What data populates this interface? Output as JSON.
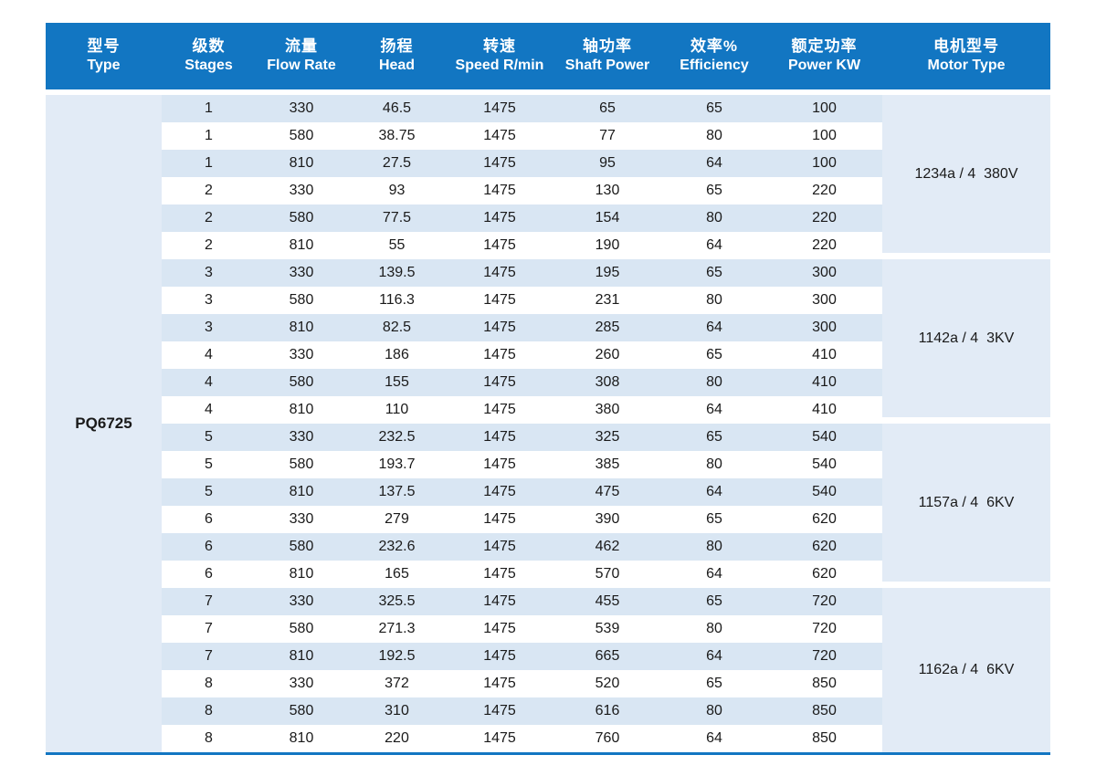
{
  "colors": {
    "header_blue": "#1276c2",
    "row_stripe_blue": "#d9e6f3",
    "group_block_blue": "#e2ebf6",
    "bottom_rule_blue": "#1276c2",
    "text": "#1a1a1a"
  },
  "table": {
    "model": "PQ6725",
    "columns": [
      {
        "zh": "型号",
        "en": "Type"
      },
      {
        "zh": "级数",
        "en": "Stages"
      },
      {
        "zh": "流量",
        "en": "Flow Rate"
      },
      {
        "zh": "扬程",
        "en": "Head"
      },
      {
        "zh": "转速",
        "en": "Speed R/min"
      },
      {
        "zh": "轴功率",
        "en": "Shaft Power"
      },
      {
        "zh": "效率%",
        "en": "Efficiency"
      },
      {
        "zh": "额定功率",
        "en": "Power KW"
      },
      {
        "zh": "电机型号",
        "en": "Motor Type"
      }
    ],
    "row_keys": [
      "stages",
      "flow",
      "head",
      "speed",
      "shaft",
      "eff",
      "power"
    ],
    "groups": [
      {
        "motor": "1234a / 4  380V",
        "rows": [
          {
            "stages": "1",
            "flow": "330",
            "head": "46.5",
            "speed": "1475",
            "shaft": "65",
            "eff": "65",
            "power": "100"
          },
          {
            "stages": "1",
            "flow": "580",
            "head": "38.75",
            "speed": "1475",
            "shaft": "77",
            "eff": "80",
            "power": "100"
          },
          {
            "stages": "1",
            "flow": "810",
            "head": "27.5",
            "speed": "1475",
            "shaft": "95",
            "eff": "64",
            "power": "100"
          },
          {
            "stages": "2",
            "flow": "330",
            "head": "93",
            "speed": "1475",
            "shaft": "130",
            "eff": "65",
            "power": "220"
          },
          {
            "stages": "2",
            "flow": "580",
            "head": "77.5",
            "speed": "1475",
            "shaft": "154",
            "eff": "80",
            "power": "220"
          },
          {
            "stages": "2",
            "flow": "810",
            "head": "55",
            "speed": "1475",
            "shaft": "190",
            "eff": "64",
            "power": "220"
          }
        ]
      },
      {
        "motor": "1142a / 4  3KV",
        "rows": [
          {
            "stages": "3",
            "flow": "330",
            "head": "139.5",
            "speed": "1475",
            "shaft": "195",
            "eff": "65",
            "power": "300"
          },
          {
            "stages": "3",
            "flow": "580",
            "head": "116.3",
            "speed": "1475",
            "shaft": "231",
            "eff": "80",
            "power": "300"
          },
          {
            "stages": "3",
            "flow": "810",
            "head": "82.5",
            "speed": "1475",
            "shaft": "285",
            "eff": "64",
            "power": "300"
          },
          {
            "stages": "4",
            "flow": "330",
            "head": "186",
            "speed": "1475",
            "shaft": "260",
            "eff": "65",
            "power": "410"
          },
          {
            "stages": "4",
            "flow": "580",
            "head": "155",
            "speed": "1475",
            "shaft": "308",
            "eff": "80",
            "power": "410"
          },
          {
            "stages": "4",
            "flow": "810",
            "head": "110",
            "speed": "1475",
            "shaft": "380",
            "eff": "64",
            "power": "410"
          }
        ]
      },
      {
        "motor": "1157a / 4  6KV",
        "rows": [
          {
            "stages": "5",
            "flow": "330",
            "head": "232.5",
            "speed": "1475",
            "shaft": "325",
            "eff": "65",
            "power": "540"
          },
          {
            "stages": "5",
            "flow": "580",
            "head": "193.7",
            "speed": "1475",
            "shaft": "385",
            "eff": "80",
            "power": "540"
          },
          {
            "stages": "5",
            "flow": "810",
            "head": "137.5",
            "speed": "1475",
            "shaft": "475",
            "eff": "64",
            "power": "540"
          },
          {
            "stages": "6",
            "flow": "330",
            "head": "279",
            "speed": "1475",
            "shaft": "390",
            "eff": "65",
            "power": "620"
          },
          {
            "stages": "6",
            "flow": "580",
            "head": "232.6",
            "speed": "1475",
            "shaft": "462",
            "eff": "80",
            "power": "620"
          },
          {
            "stages": "6",
            "flow": "810",
            "head": "165",
            "speed": "1475",
            "shaft": "570",
            "eff": "64",
            "power": "620"
          }
        ]
      },
      {
        "motor": "1162a / 4  6KV",
        "rows": [
          {
            "stages": "7",
            "flow": "330",
            "head": "325.5",
            "speed": "1475",
            "shaft": "455",
            "eff": "65",
            "power": "720"
          },
          {
            "stages": "7",
            "flow": "580",
            "head": "271.3",
            "speed": "1475",
            "shaft": "539",
            "eff": "80",
            "power": "720"
          },
          {
            "stages": "7",
            "flow": "810",
            "head": "192.5",
            "speed": "1475",
            "shaft": "665",
            "eff": "64",
            "power": "720"
          },
          {
            "stages": "8",
            "flow": "330",
            "head": "372",
            "speed": "1475",
            "shaft": "520",
            "eff": "65",
            "power": "850"
          },
          {
            "stages": "8",
            "flow": "580",
            "head": "310",
            "speed": "1475",
            "shaft": "616",
            "eff": "80",
            "power": "850"
          },
          {
            "stages": "8",
            "flow": "810",
            "head": "220",
            "speed": "1475",
            "shaft": "760",
            "eff": "64",
            "power": "850"
          }
        ]
      }
    ]
  }
}
